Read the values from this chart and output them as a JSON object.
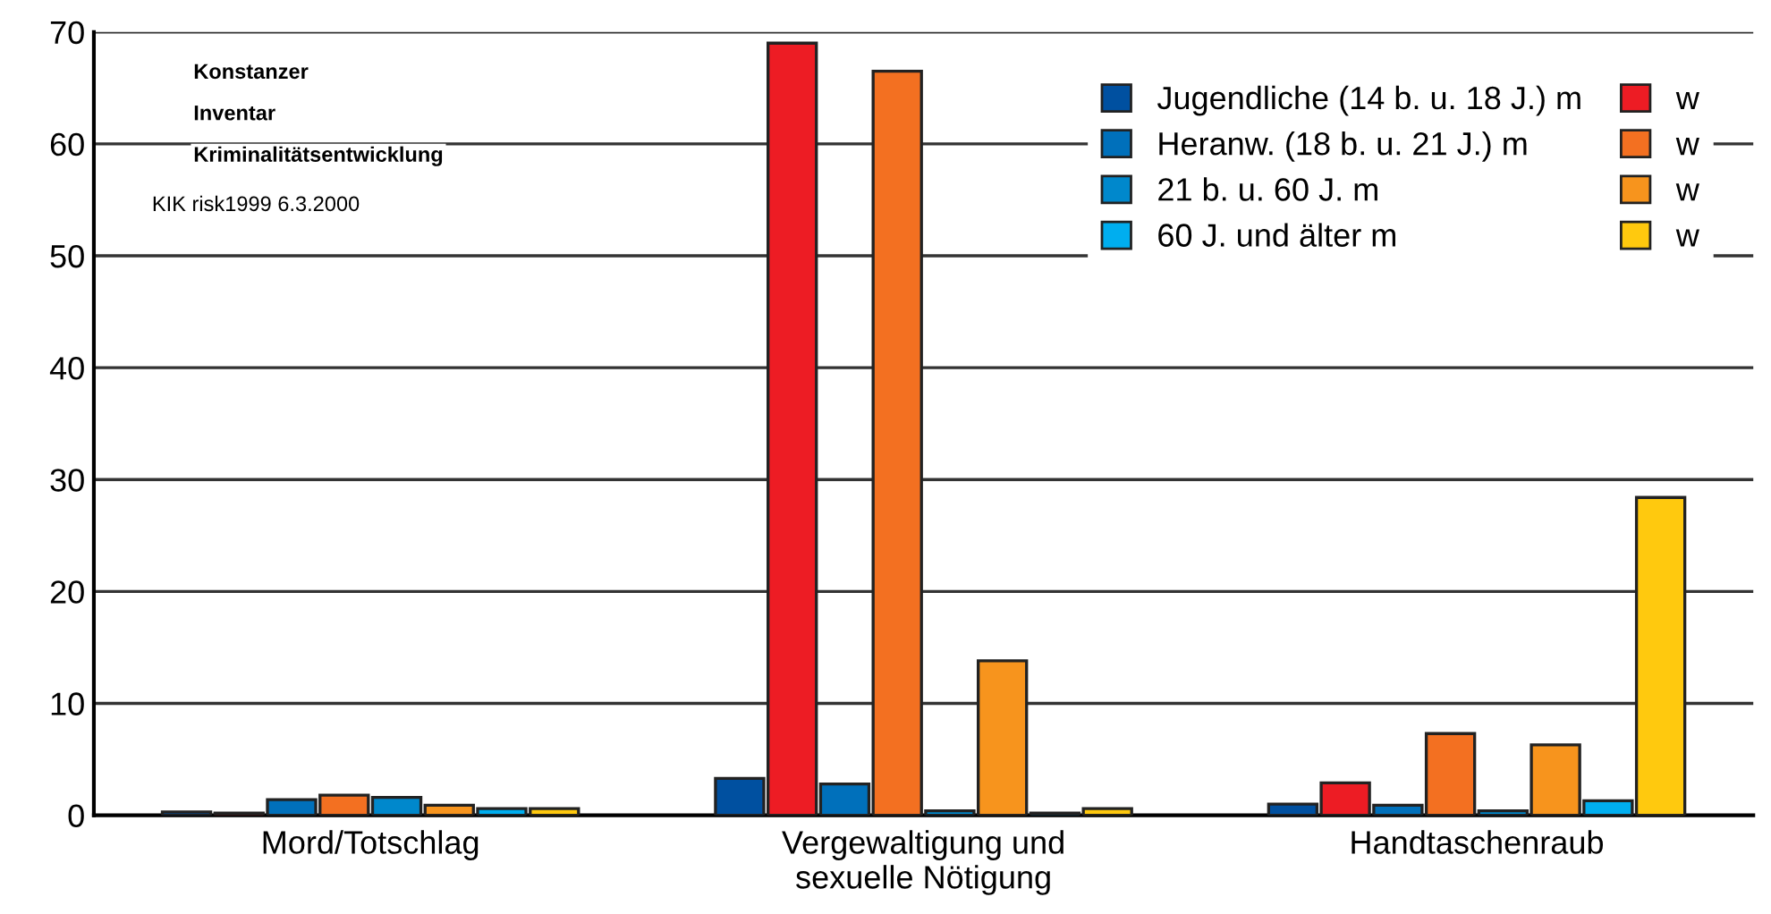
{
  "chart_data": {
    "type": "bar",
    "categories": [
      "Mord/Totschlag",
      "Vergewaltigung und\nsexuelle Nötigung",
      "Handtaschenraub"
    ],
    "series": [
      {
        "name": "Jugendliche (14 b. u. 18 J.) m",
        "color": "#0050a0",
        "values": [
          0.3,
          3.3,
          1.0
        ]
      },
      {
        "name": "w",
        "color": "#ed1c24",
        "values": [
          0.2,
          69,
          2.9
        ]
      },
      {
        "name": "Heranw. (18 b. u. 21 J.) m",
        "color": "#0070bb",
        "values": [
          1.4,
          2.8,
          0.9
        ]
      },
      {
        "name": "w",
        "color": "#f37021",
        "values": [
          1.8,
          66.5,
          7.3
        ]
      },
      {
        "name": "21 b. u. 60 J. m",
        "color": "#0088cc",
        "values": [
          1.6,
          0.4,
          0.4
        ]
      },
      {
        "name": "w",
        "color": "#f7941d",
        "values": [
          0.9,
          13.8,
          6.3
        ]
      },
      {
        "name": "60 J. und älter m",
        "color": "#00aeef",
        "values": [
          0.6,
          0.2,
          1.3
        ]
      },
      {
        "name": "w",
        "color": "#ffc90e",
        "values": [
          0.6,
          0.6,
          28.4
        ]
      }
    ],
    "ylim": [
      0,
      70
    ],
    "yticks": [
      0,
      10,
      20,
      30,
      40,
      50,
      60,
      70
    ],
    "grid": "y",
    "legend": "top right",
    "annotations": [
      "Konstanzer",
      "Inventar",
      "Kriminalitätsentwicklung",
      "KIK risk1999 6.3.2000"
    ]
  }
}
